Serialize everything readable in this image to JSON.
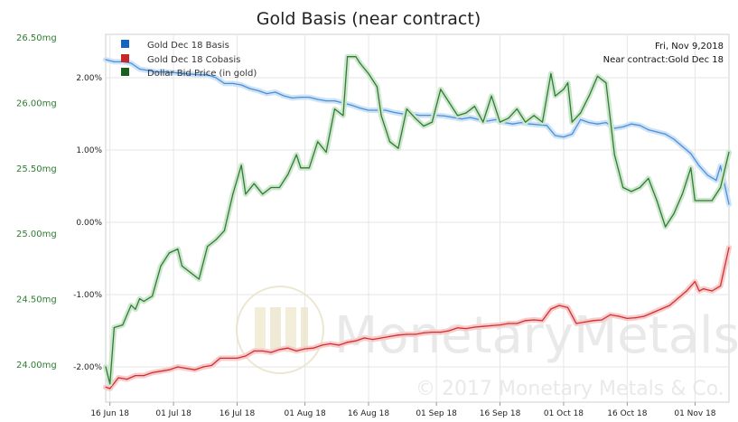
{
  "chart_data": {
    "type": "line",
    "title": "Gold Basis (near contract)",
    "info_date": "Fri, Nov 9,2018",
    "info_contract": "Near contract:Gold Dec 18",
    "watermark": {
      "brand": "MonetaryMetals",
      "copyright": "© 2017 Monetary Metals & Co."
    },
    "x_ticks": [
      "16 Jun 18",
      "01 Jul 18",
      "16 Jul 18",
      "01 Aug 18",
      "16 Aug 18",
      "01 Sep 18",
      "16 Sep 18",
      "01 Oct 18",
      "16 Oct 18",
      "01 Nov 18"
    ],
    "x_range": [
      "2018-06-15",
      "2018-11-09"
    ],
    "y_left": {
      "ticks": [
        "24.00mg",
        "24.50mg",
        "25.00mg",
        "25.50mg",
        "26.00mg",
        "26.50mg"
      ],
      "tick_values": [
        24.0,
        24.5,
        25.0,
        25.5,
        26.0,
        26.5
      ],
      "color": "#2e7d32"
    },
    "y_right": {
      "ticks": [
        "-2.00%",
        "-1.00%",
        "0.00%",
        "1.00%",
        "2.00%"
      ],
      "tick_values": [
        -2.0,
        -1.0,
        0.0,
        1.0,
        2.0
      ],
      "range": [
        -2.5,
        2.5
      ]
    },
    "grid": true,
    "legend_position": "top-left",
    "series": [
      {
        "name": "Gold Dec 18 Basis",
        "color": "#4a90d9",
        "axis": "right",
        "points": [
          [
            "2018-06-15",
            2.25
          ],
          [
            "2018-06-17",
            2.22
          ],
          [
            "2018-06-19",
            2.22
          ],
          [
            "2018-06-21",
            2.2
          ],
          [
            "2018-06-23",
            2.12
          ],
          [
            "2018-06-25",
            2.1
          ],
          [
            "2018-06-27",
            2.08
          ],
          [
            "2018-06-29",
            2.08
          ],
          [
            "2018-07-01",
            2.07
          ],
          [
            "2018-07-03",
            2.06
          ],
          [
            "2018-07-05",
            2.05
          ],
          [
            "2018-07-07",
            2.04
          ],
          [
            "2018-07-09",
            2.04
          ],
          [
            "2018-07-11",
            2.0
          ],
          [
            "2018-07-13",
            1.92
          ],
          [
            "2018-07-15",
            1.92
          ],
          [
            "2018-07-17",
            1.9
          ],
          [
            "2018-07-19",
            1.85
          ],
          [
            "2018-07-21",
            1.82
          ],
          [
            "2018-07-23",
            1.78
          ],
          [
            "2018-07-25",
            1.8
          ],
          [
            "2018-07-27",
            1.75
          ],
          [
            "2018-07-29",
            1.72
          ],
          [
            "2018-07-31",
            1.73
          ],
          [
            "2018-08-02",
            1.73
          ],
          [
            "2018-08-04",
            1.7
          ],
          [
            "2018-08-06",
            1.68
          ],
          [
            "2018-08-08",
            1.68
          ],
          [
            "2018-08-10",
            1.65
          ],
          [
            "2018-08-12",
            1.62
          ],
          [
            "2018-08-14",
            1.58
          ],
          [
            "2018-08-16",
            1.55
          ],
          [
            "2018-08-18",
            1.55
          ],
          [
            "2018-08-20",
            1.55
          ],
          [
            "2018-08-22",
            1.52
          ],
          [
            "2018-08-24",
            1.5
          ],
          [
            "2018-08-26",
            1.5
          ],
          [
            "2018-08-28",
            1.48
          ],
          [
            "2018-08-30",
            1.48
          ],
          [
            "2018-09-01",
            1.48
          ],
          [
            "2018-09-03",
            1.47
          ],
          [
            "2018-09-05",
            1.45
          ],
          [
            "2018-09-07",
            1.43
          ],
          [
            "2018-09-09",
            1.45
          ],
          [
            "2018-09-11",
            1.42
          ],
          [
            "2018-09-13",
            1.4
          ],
          [
            "2018-09-15",
            1.42
          ],
          [
            "2018-09-17",
            1.38
          ],
          [
            "2018-09-19",
            1.36
          ],
          [
            "2018-09-21",
            1.38
          ],
          [
            "2018-09-23",
            1.36
          ],
          [
            "2018-09-25",
            1.35
          ],
          [
            "2018-09-27",
            1.34
          ],
          [
            "2018-09-29",
            1.2
          ],
          [
            "2018-10-01",
            1.18
          ],
          [
            "2018-10-03",
            1.22
          ],
          [
            "2018-10-05",
            1.42
          ],
          [
            "2018-10-07",
            1.38
          ],
          [
            "2018-10-09",
            1.36
          ],
          [
            "2018-10-11",
            1.38
          ],
          [
            "2018-10-13",
            1.3
          ],
          [
            "2018-10-15",
            1.32
          ],
          [
            "2018-10-17",
            1.36
          ],
          [
            "2018-10-19",
            1.34
          ],
          [
            "2018-10-21",
            1.28
          ],
          [
            "2018-10-23",
            1.25
          ],
          [
            "2018-10-25",
            1.22
          ],
          [
            "2018-10-27",
            1.15
          ],
          [
            "2018-10-29",
            1.05
          ],
          [
            "2018-10-31",
            0.95
          ],
          [
            "2018-11-02",
            0.78
          ],
          [
            "2018-11-04",
            0.65
          ],
          [
            "2018-11-06",
            0.58
          ],
          [
            "2018-11-07",
            0.78
          ],
          [
            "2018-11-09",
            0.25
          ]
        ]
      },
      {
        "name": "Gold Dec 18 Cobasis",
        "color": "#d32f2f",
        "axis": "right",
        "points": [
          [
            "2018-06-15",
            -2.28
          ],
          [
            "2018-06-16",
            -2.3
          ],
          [
            "2018-06-18",
            -2.15
          ],
          [
            "2018-06-20",
            -2.17
          ],
          [
            "2018-06-22",
            -2.12
          ],
          [
            "2018-06-24",
            -2.12
          ],
          [
            "2018-06-26",
            -2.08
          ],
          [
            "2018-06-28",
            -2.06
          ],
          [
            "2018-06-30",
            -2.04
          ],
          [
            "2018-07-02",
            -2.0
          ],
          [
            "2018-07-04",
            -2.02
          ],
          [
            "2018-07-06",
            -2.04
          ],
          [
            "2018-07-08",
            -2.0
          ],
          [
            "2018-07-10",
            -1.98
          ],
          [
            "2018-07-12",
            -1.88
          ],
          [
            "2018-07-14",
            -1.88
          ],
          [
            "2018-07-16",
            -1.88
          ],
          [
            "2018-07-18",
            -1.85
          ],
          [
            "2018-07-20",
            -1.78
          ],
          [
            "2018-07-22",
            -1.78
          ],
          [
            "2018-07-24",
            -1.8
          ],
          [
            "2018-07-26",
            -1.76
          ],
          [
            "2018-07-28",
            -1.74
          ],
          [
            "2018-07-30",
            -1.78
          ],
          [
            "2018-08-01",
            -1.75
          ],
          [
            "2018-08-03",
            -1.74
          ],
          [
            "2018-08-05",
            -1.7
          ],
          [
            "2018-08-07",
            -1.68
          ],
          [
            "2018-08-09",
            -1.7
          ],
          [
            "2018-08-11",
            -1.66
          ],
          [
            "2018-08-13",
            -1.64
          ],
          [
            "2018-08-15",
            -1.6
          ],
          [
            "2018-08-17",
            -1.62
          ],
          [
            "2018-08-19",
            -1.6
          ],
          [
            "2018-08-21",
            -1.58
          ],
          [
            "2018-08-23",
            -1.56
          ],
          [
            "2018-08-25",
            -1.55
          ],
          [
            "2018-08-27",
            -1.55
          ],
          [
            "2018-08-29",
            -1.53
          ],
          [
            "2018-08-31",
            -1.52
          ],
          [
            "2018-09-02",
            -1.52
          ],
          [
            "2018-09-04",
            -1.5
          ],
          [
            "2018-09-06",
            -1.46
          ],
          [
            "2018-09-08",
            -1.47
          ],
          [
            "2018-09-10",
            -1.45
          ],
          [
            "2018-09-12",
            -1.44
          ],
          [
            "2018-09-14",
            -1.43
          ],
          [
            "2018-09-16",
            -1.42
          ],
          [
            "2018-09-18",
            -1.4
          ],
          [
            "2018-09-20",
            -1.4
          ],
          [
            "2018-09-22",
            -1.36
          ],
          [
            "2018-09-24",
            -1.35
          ],
          [
            "2018-09-26",
            -1.36
          ],
          [
            "2018-09-28",
            -1.2
          ],
          [
            "2018-09-30",
            -1.15
          ],
          [
            "2018-10-02",
            -1.18
          ],
          [
            "2018-10-04",
            -1.4
          ],
          [
            "2018-10-06",
            -1.38
          ],
          [
            "2018-10-08",
            -1.36
          ],
          [
            "2018-10-10",
            -1.35
          ],
          [
            "2018-10-12",
            -1.28
          ],
          [
            "2018-10-14",
            -1.3
          ],
          [
            "2018-10-16",
            -1.33
          ],
          [
            "2018-10-18",
            -1.32
          ],
          [
            "2018-10-20",
            -1.3
          ],
          [
            "2018-10-22",
            -1.25
          ],
          [
            "2018-10-24",
            -1.2
          ],
          [
            "2018-10-26",
            -1.15
          ],
          [
            "2018-10-28",
            -1.05
          ],
          [
            "2018-10-30",
            -0.95
          ],
          [
            "2018-11-01",
            -0.82
          ],
          [
            "2018-11-02",
            -0.95
          ],
          [
            "2018-11-03",
            -0.92
          ],
          [
            "2018-11-05",
            -0.95
          ],
          [
            "2018-11-07",
            -0.88
          ],
          [
            "2018-11-09",
            -0.35
          ]
        ]
      },
      {
        "name": "Dollar Bid Price (in gold)",
        "color": "#2e7d32",
        "axis": "left",
        "points": [
          [
            "2018-06-15",
            23.98
          ],
          [
            "2018-06-16",
            23.85
          ],
          [
            "2018-06-17",
            24.28
          ],
          [
            "2018-06-19",
            24.3
          ],
          [
            "2018-06-21",
            24.45
          ],
          [
            "2018-06-22",
            24.42
          ],
          [
            "2018-06-23",
            24.5
          ],
          [
            "2018-06-24",
            24.48
          ],
          [
            "2018-06-26",
            24.52
          ],
          [
            "2018-06-28",
            24.75
          ],
          [
            "2018-06-30",
            24.85
          ],
          [
            "2018-07-02",
            24.88
          ],
          [
            "2018-07-03",
            24.75
          ],
          [
            "2018-07-05",
            24.7
          ],
          [
            "2018-07-07",
            24.65
          ],
          [
            "2018-07-09",
            24.9
          ],
          [
            "2018-07-11",
            24.95
          ],
          [
            "2018-07-13",
            25.02
          ],
          [
            "2018-07-15",
            25.3
          ],
          [
            "2018-07-17",
            25.52
          ],
          [
            "2018-07-18",
            25.3
          ],
          [
            "2018-07-20",
            25.38
          ],
          [
            "2018-07-22",
            25.3
          ],
          [
            "2018-07-24",
            25.35
          ],
          [
            "2018-07-26",
            25.35
          ],
          [
            "2018-07-28",
            25.45
          ],
          [
            "2018-07-30",
            25.6
          ],
          [
            "2018-07-31",
            25.5
          ],
          [
            "2018-08-02",
            25.5
          ],
          [
            "2018-08-04",
            25.7
          ],
          [
            "2018-08-06",
            25.62
          ],
          [
            "2018-08-08",
            25.95
          ],
          [
            "2018-08-10",
            25.9
          ],
          [
            "2018-08-11",
            26.35
          ],
          [
            "2018-08-13",
            26.35
          ],
          [
            "2018-08-14",
            26.3
          ],
          [
            "2018-08-16",
            26.22
          ],
          [
            "2018-08-18",
            26.12
          ],
          [
            "2018-08-19",
            25.9
          ],
          [
            "2018-08-21",
            25.7
          ],
          [
            "2018-08-23",
            25.65
          ],
          [
            "2018-08-25",
            25.95
          ],
          [
            "2018-08-27",
            25.88
          ],
          [
            "2018-08-29",
            25.82
          ],
          [
            "2018-08-31",
            25.85
          ],
          [
            "2018-09-02",
            26.1
          ],
          [
            "2018-09-04",
            26.0
          ],
          [
            "2018-09-06",
            25.9
          ],
          [
            "2018-09-08",
            25.92
          ],
          [
            "2018-09-10",
            25.97
          ],
          [
            "2018-09-12",
            25.85
          ],
          [
            "2018-09-14",
            26.05
          ],
          [
            "2018-09-16",
            25.85
          ],
          [
            "2018-09-18",
            25.88
          ],
          [
            "2018-09-20",
            25.95
          ],
          [
            "2018-09-22",
            25.85
          ],
          [
            "2018-09-24",
            25.9
          ],
          [
            "2018-09-26",
            25.85
          ],
          [
            "2018-09-28",
            26.22
          ],
          [
            "2018-09-29",
            26.05
          ],
          [
            "2018-10-01",
            26.1
          ],
          [
            "2018-10-02",
            26.15
          ],
          [
            "2018-10-03",
            25.85
          ],
          [
            "2018-10-05",
            25.92
          ],
          [
            "2018-10-07",
            26.05
          ],
          [
            "2018-10-09",
            26.2
          ],
          [
            "2018-10-11",
            26.15
          ],
          [
            "2018-10-13",
            25.6
          ],
          [
            "2018-10-15",
            25.35
          ],
          [
            "2018-10-17",
            25.32
          ],
          [
            "2018-10-19",
            25.35
          ],
          [
            "2018-10-21",
            25.42
          ],
          [
            "2018-10-23",
            25.25
          ],
          [
            "2018-10-25",
            25.05
          ],
          [
            "2018-10-27",
            25.15
          ],
          [
            "2018-10-29",
            25.3
          ],
          [
            "2018-10-31",
            25.5
          ],
          [
            "2018-11-01",
            25.25
          ],
          [
            "2018-11-03",
            25.25
          ],
          [
            "2018-11-05",
            25.25
          ],
          [
            "2018-11-07",
            25.35
          ],
          [
            "2018-11-09",
            25.62
          ]
        ]
      }
    ]
  }
}
